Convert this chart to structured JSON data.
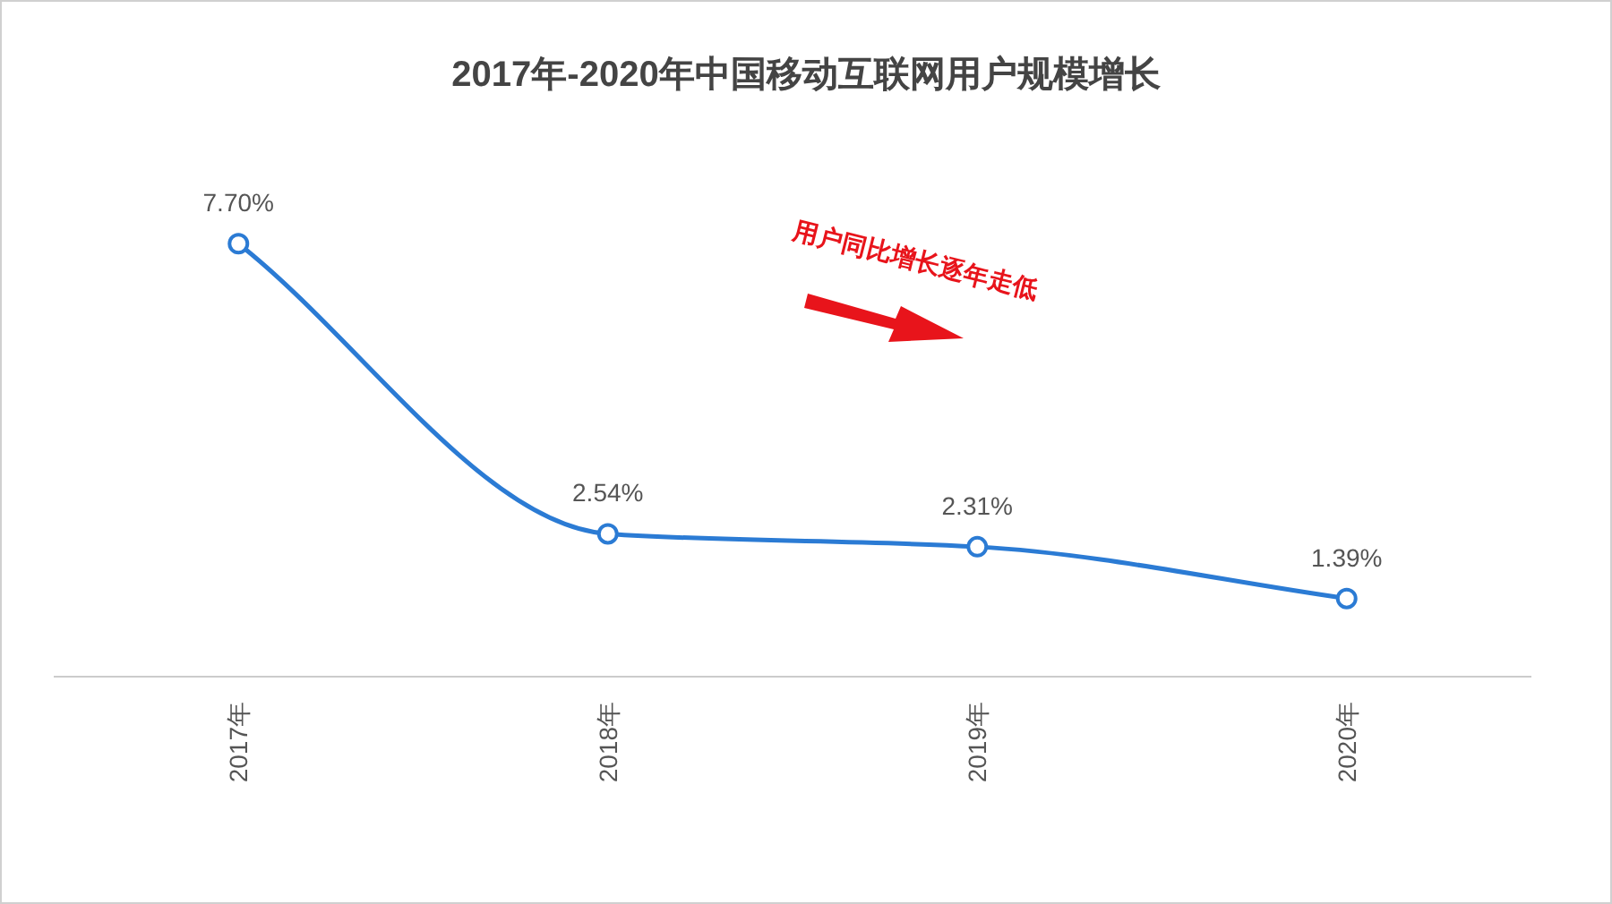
{
  "chart_data": {
    "type": "line",
    "title": "2017年-2020年中国移动互联网用户规模增长",
    "categories": [
      "2017年",
      "2018年",
      "2019年",
      "2020年"
    ],
    "series": [
      {
        "color": "#2b7bd4",
        "values": [
          7.7,
          2.54,
          2.31,
          1.39
        ],
        "value_labels": [
          "7.70%",
          "2.54%",
          "2.31%",
          "1.39%"
        ]
      }
    ],
    "marker": "circle",
    "line_style": "solid",
    "annotations": [
      "用户同比增长逐年走低"
    ]
  }
}
